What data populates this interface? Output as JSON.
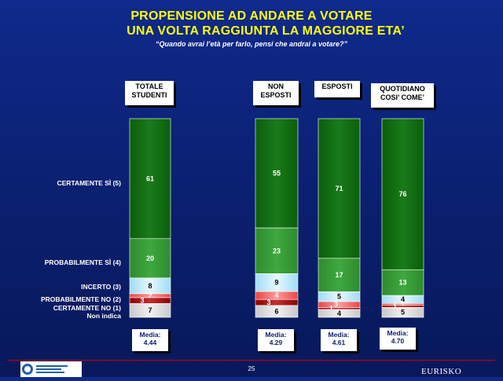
{
  "title_line1": "PROPENSIONE AD ANDARE A VOTARE",
  "title_line2": "UNA VOLTA RAGGIUNTA LA MAGGIORE ETA’",
  "subtitle": "“Quando avrai l’età per farlo, pensi che andrai a votare?”",
  "row_labels": {
    "certamente_si": "CERTAMENTE SÌ (5)",
    "probabilmente_si": "PROBABILMENTE SÌ (4)",
    "incerto": "INCERTO (3)",
    "probabilmente_no": "PROBABILMENTE NO (2)",
    "certamente_no": "CERTAMENTE NO (1)",
    "non_indica": "Non indica"
  },
  "columns": [
    {
      "header_line1": "TOTALE",
      "header_line2": "STUDENTI",
      "media_label": "Media:",
      "media_value": "4.44"
    },
    {
      "header_line1": "NON",
      "header_line2": "ESPOSTI",
      "media_label": "Media:",
      "media_value": "4.29"
    },
    {
      "header_line1": "ESPOSTI",
      "header_line2": "",
      "media_label": "Media:",
      "media_value": "4.61"
    },
    {
      "header_line1": "QUOTIDIANO",
      "header_line2": "COSI’ COME’",
      "media_label": "Media:",
      "media_value": "4.70"
    }
  ],
  "page_number": "25",
  "brand": "EURISKO",
  "colors": {
    "background": "#0a1f6e",
    "title": "#ffff00",
    "certamente_si": "#0b5e0b",
    "probabilmente_si": "#2e8b2e",
    "incerto": "#9fdcf5",
    "probabilmente_no": "#e84545",
    "certamente_no": "#8b0000",
    "non_indica": "#c8c8c8"
  },
  "chart_data": {
    "type": "bar",
    "stacked": true,
    "categories": [
      "TOTALE STUDENTI",
      "NON ESPOSTI",
      "ESPOSTI",
      "QUOTIDIANO COSI’ COME’"
    ],
    "series": [
      {
        "name": "CERTAMENTE SÌ (5)",
        "values": [
          61,
          55,
          71,
          76
        ]
      },
      {
        "name": "PROBABILMENTE SÌ (4)",
        "values": [
          20,
          23,
          17,
          13
        ]
      },
      {
        "name": "INCERTO (3)",
        "values": [
          8,
          9,
          5,
          4
        ]
      },
      {
        "name": "PROBABILMENTE NO (2)",
        "values": [
          2,
          4,
          3,
          1
        ]
      },
      {
        "name": "CERTAMENTE NO (1)",
        "values": [
          3,
          3,
          1,
          1
        ]
      },
      {
        "name": "Non indica",
        "values": [
          7,
          6,
          4,
          5
        ]
      }
    ],
    "ylim": [
      0,
      100
    ]
  }
}
